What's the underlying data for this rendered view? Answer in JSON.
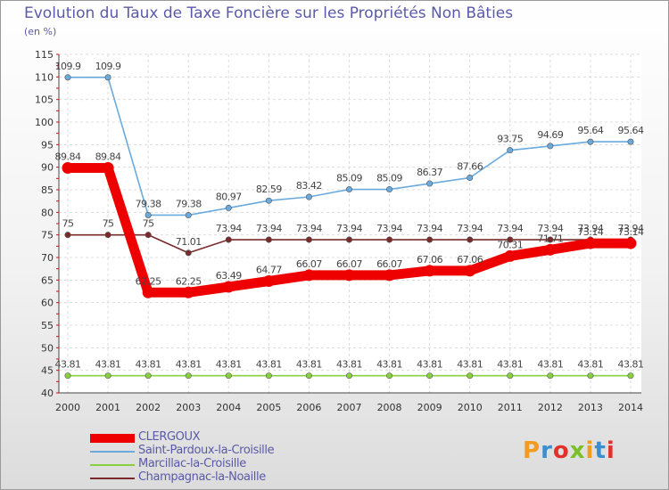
{
  "title": "Evolution du Taux de Taxe Foncière sur les Propriétés Non Bâties",
  "unit_label": "(en %)",
  "logo_text": "Proxiti",
  "chart_data": {
    "type": "line",
    "title": "Evolution du Taux de Taxe Foncière sur les Propriétés Non Bâties",
    "ylabel": "(en %)",
    "xlabel": "",
    "ylim": [
      40,
      115
    ],
    "yticks": [
      40,
      45,
      50,
      55,
      60,
      65,
      70,
      75,
      80,
      85,
      90,
      95,
      100,
      105,
      110,
      115
    ],
    "categories": [
      "2000",
      "2001",
      "2002",
      "2003",
      "2004",
      "2005",
      "2006",
      "2007",
      "2008",
      "2009",
      "2010",
      "2011",
      "2012",
      "2013",
      "2014"
    ],
    "grid": true,
    "series": [
      {
        "name": "CLERGOUX",
        "color": "#ee0000",
        "values": [
          89.84,
          89.84,
          62.25,
          62.25,
          63.49,
          64.77,
          66.07,
          66.07,
          66.07,
          67.06,
          67.06,
          70.31,
          71.71,
          73.14,
          73.14
        ],
        "labels": [
          "89.84",
          "89.84",
          "62.25",
          "62.25",
          "63.49",
          "64.77",
          "66.07",
          "66.07",
          "66.07",
          "67.06",
          "67.06",
          "70.31",
          "71.71",
          "73.14",
          "73.14"
        ]
      },
      {
        "name": "Saint-Pardoux-la-Croisille",
        "color": "#6aaadc",
        "values": [
          109.9,
          109.9,
          79.38,
          79.38,
          80.97,
          82.59,
          83.42,
          85.09,
          85.09,
          86.37,
          87.66,
          93.75,
          94.69,
          95.64,
          95.64
        ],
        "labels": [
          "109.9",
          "109.9",
          "79.38",
          "79.38",
          "80.97",
          "82.59",
          "83.42",
          "85.09",
          "85.09",
          "86.37",
          "87.66",
          "93.75",
          "94.69",
          "95.64",
          "95.64"
        ]
      },
      {
        "name": "Marcillac-la-Croisille",
        "color": "#88d040",
        "values": [
          43.81,
          43.81,
          43.81,
          43.81,
          43.81,
          43.81,
          43.81,
          43.81,
          43.81,
          43.81,
          43.81,
          43.81,
          43.81,
          43.81,
          43.81
        ],
        "labels": [
          "43.81",
          "43.81",
          "43.81",
          "43.81",
          "43.81",
          "43.81",
          "43.81",
          "43.81",
          "43.81",
          "43.81",
          "43.81",
          "43.81",
          "43.81",
          "43.81",
          "43.81"
        ]
      },
      {
        "name": "Champagnac-la-Noaille",
        "color": "#7a2a2a",
        "values": [
          75,
          75,
          75,
          71.01,
          73.94,
          73.94,
          73.94,
          73.94,
          73.94,
          73.94,
          73.94,
          73.94,
          73.94,
          73.94,
          73.94
        ],
        "labels": [
          "75",
          "75",
          "75",
          "71.01",
          "73.94",
          "73.94",
          "73.94",
          "73.94",
          "73.94",
          "73.94",
          "73.94",
          "73.94",
          "73.94",
          "73.94",
          "73.94"
        ]
      }
    ]
  }
}
